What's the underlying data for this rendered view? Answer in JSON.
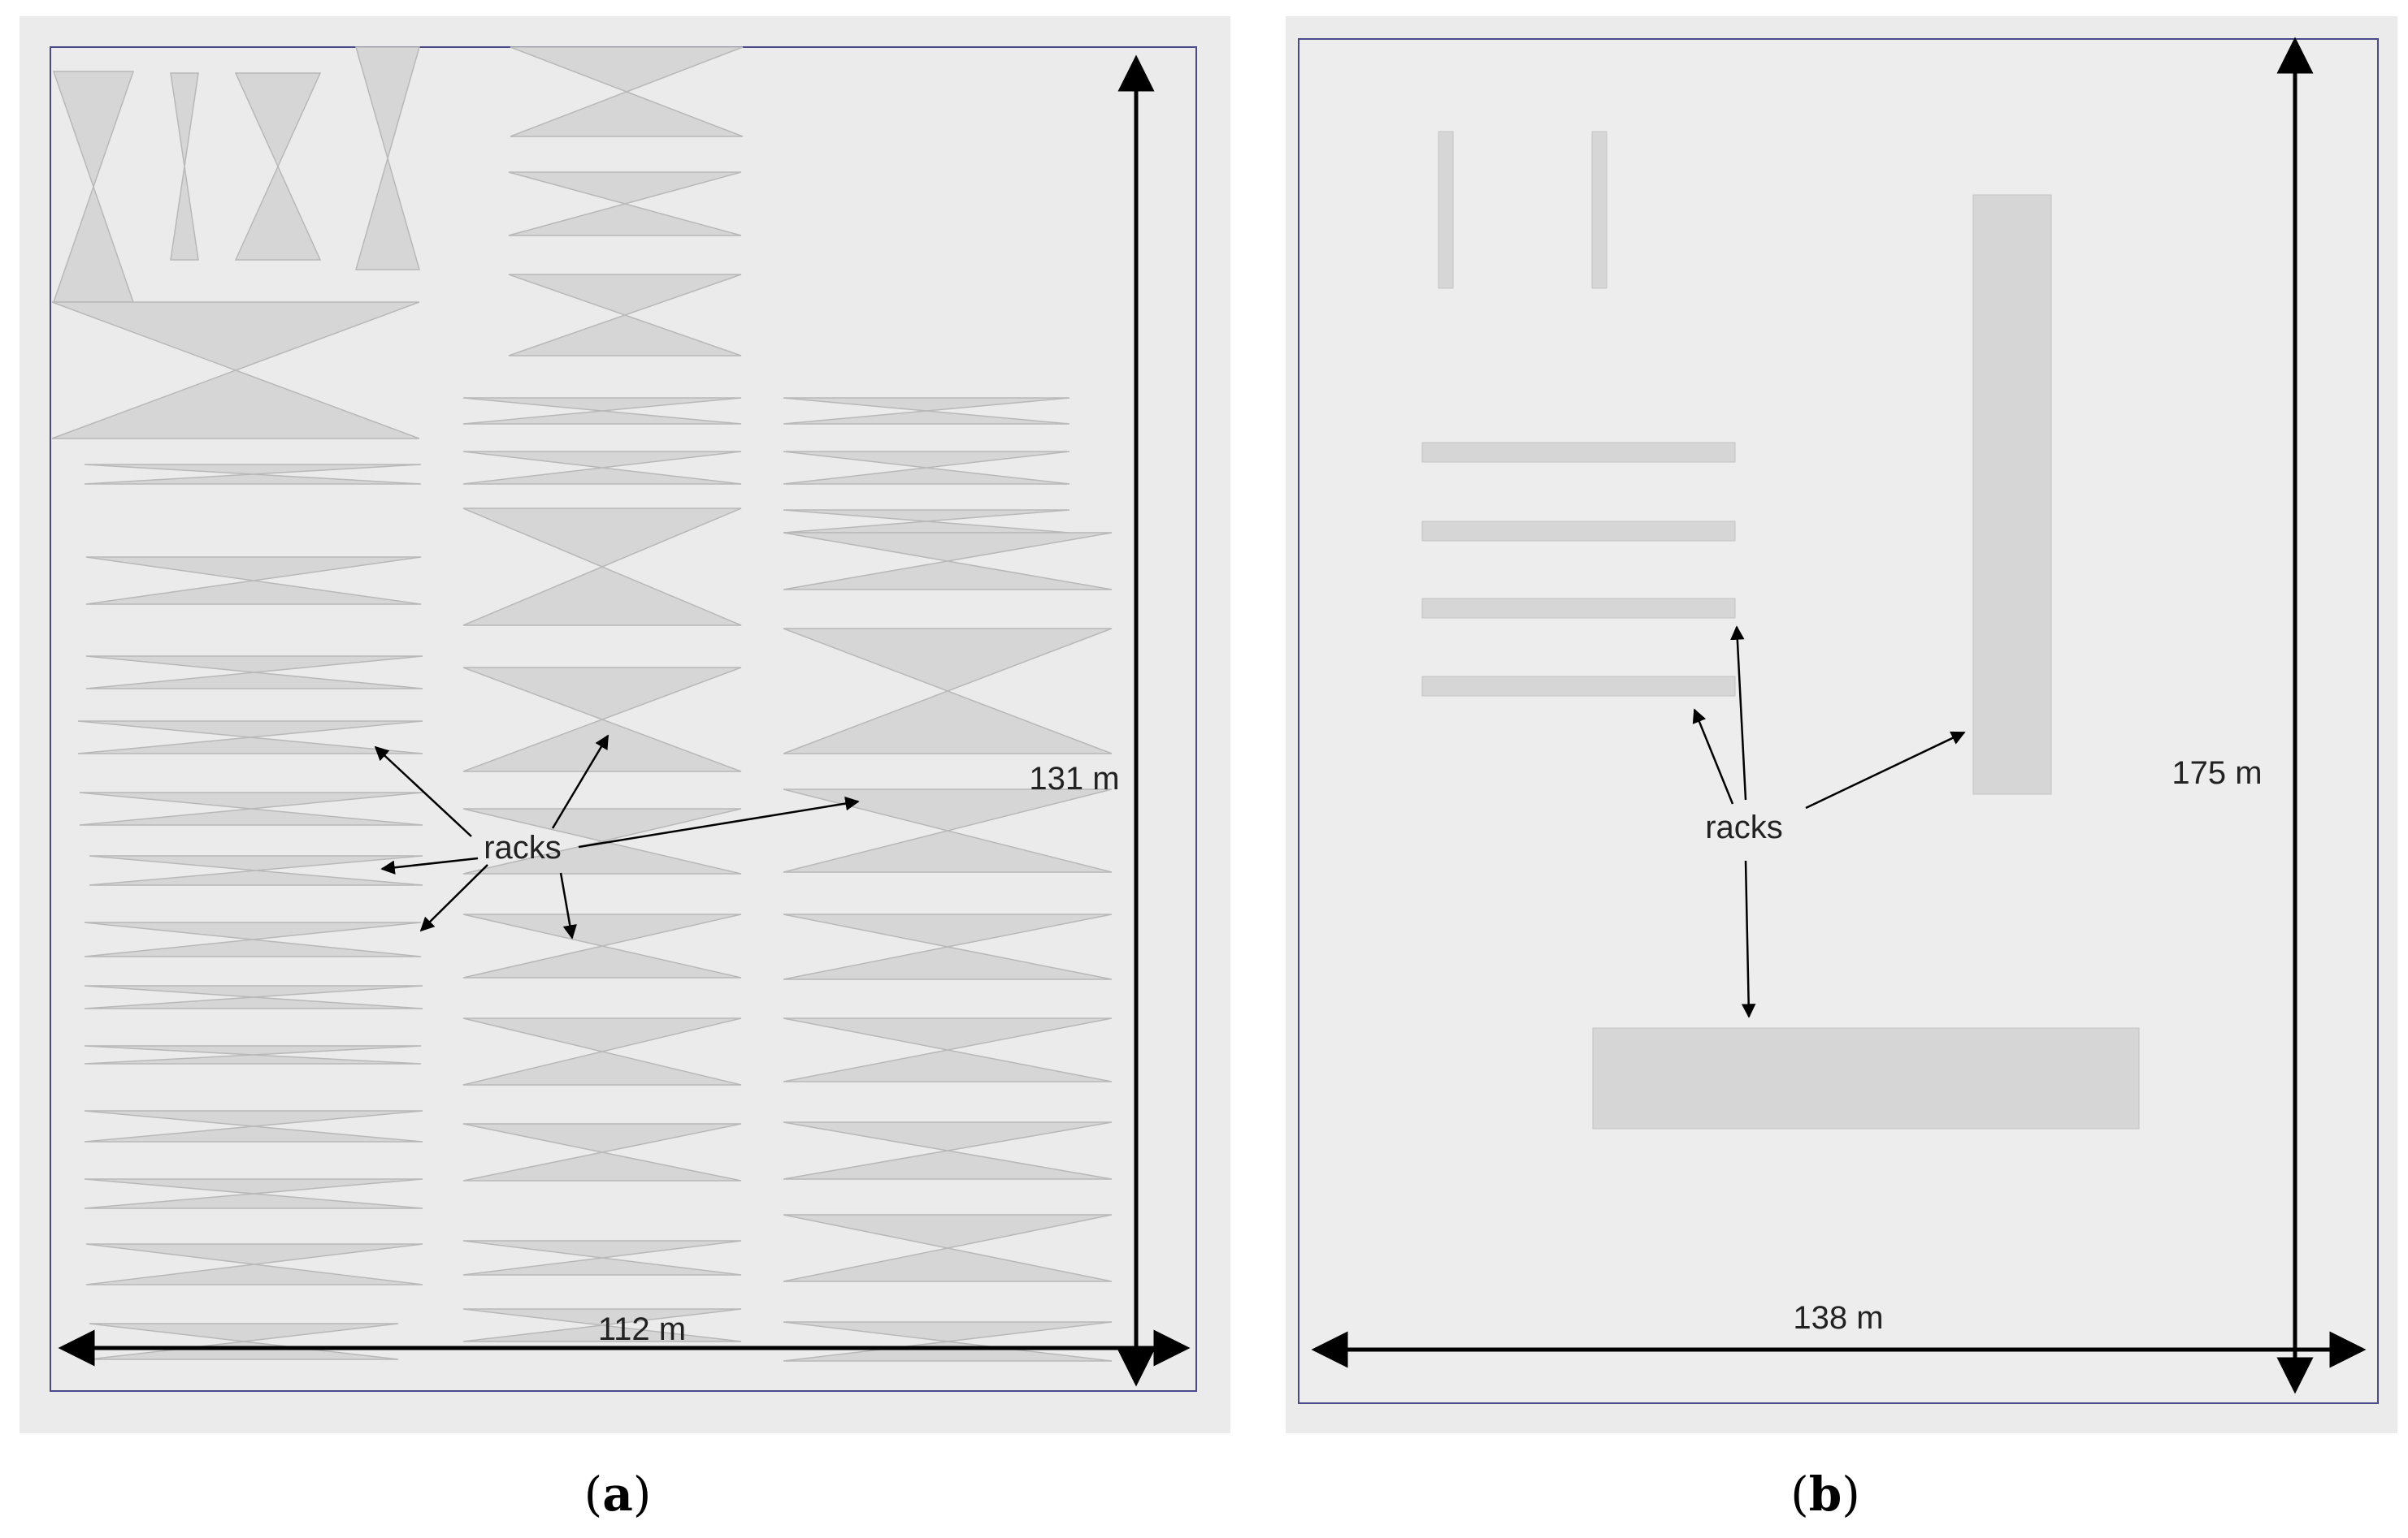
{
  "panels": {
    "a": {
      "caption_letter": "a",
      "width_label": "112 m",
      "height_label": "131 m",
      "racks_label": "racks"
    },
    "b": {
      "caption_letter": "b",
      "width_label": "138 m",
      "height_label": "175 m",
      "racks_label": "racks"
    }
  },
  "colors": {
    "panel_bg": "#ebebeb",
    "floor_b": "#ededed",
    "rack_fill": "#d6d6d6",
    "rack_stroke": "#b8b8b8",
    "border": "#4a4a8a",
    "arrow": "#000000"
  }
}
